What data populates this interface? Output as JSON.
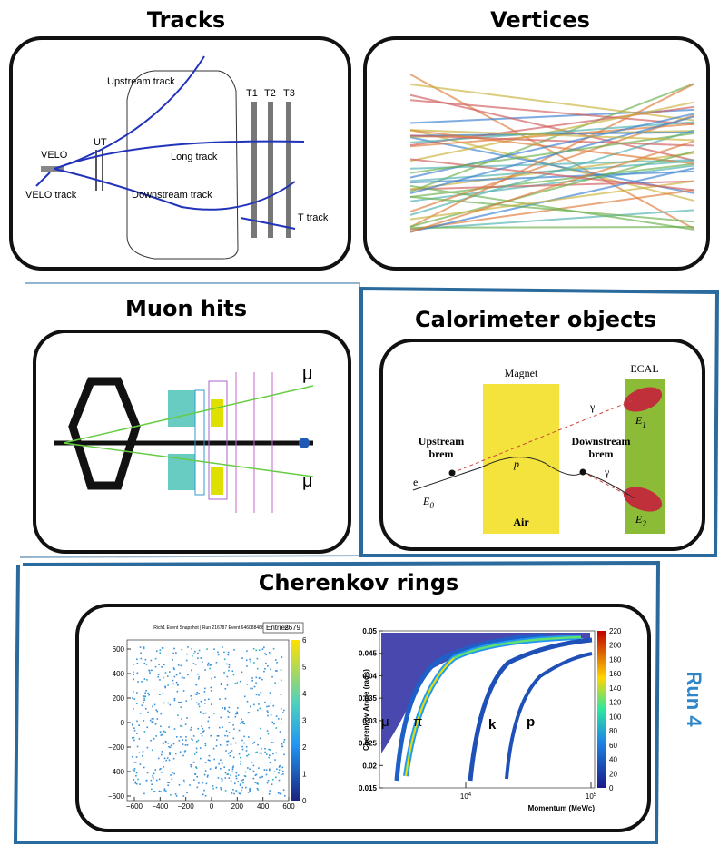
{
  "panels": {
    "tracks": {
      "title": "Tracks",
      "labels": {
        "upstream": "Upstream track",
        "t1": "T1",
        "t2": "T2",
        "t3": "T3",
        "ut": "UT",
        "velo": "VELO",
        "long": "Long track",
        "velo_track": "VELO track",
        "downstream": "Downstream track",
        "t_track": "T track"
      }
    },
    "vertices": {
      "title": "Vertices"
    },
    "muon": {
      "title": "Muon hits",
      "labels": [
        "μ",
        "μ"
      ]
    },
    "calorimeter": {
      "title": "Calorimeter objects",
      "labels": {
        "magnet": "Magnet",
        "ecal": "ECAL",
        "upstream_brem": [
          "Upstream",
          "brem"
        ],
        "downstream_brem": [
          "Downstream",
          "brem"
        ],
        "air": "Air",
        "e": "e",
        "p": "p",
        "gamma": [
          "γ",
          "γ"
        ],
        "e0": {
          "base": "E",
          "sub": "0"
        },
        "e1": {
          "base": "E",
          "sub": "1"
        },
        "e2": {
          "base": "E",
          "sub": "2"
        }
      }
    },
    "cherenkov": {
      "title": "Cherenkov rings",
      "left": {
        "title": "Rich1 Event Snapshot | Run 216787 Event 646088486",
        "entries_label": "Entries",
        "entries": "2679",
        "xticks": [
          "−600",
          "−400",
          "−200",
          "0",
          "200",
          "400",
          "600"
        ],
        "yticks": [
          "600",
          "400",
          "200",
          "0",
          "−200",
          "−400",
          "−600"
        ],
        "zticks": [
          "0",
          "1",
          "2",
          "3",
          "4",
          "5",
          "6"
        ]
      },
      "right": {
        "ylabel": "Cherenkov Angle (rads)",
        "xlabel": "Momentum (MeV/c)",
        "yticks": [
          "0.015",
          "0.02",
          "0.025",
          "0.03",
          "0.035",
          "0.04",
          "0.045",
          "0.05"
        ],
        "xticks": [
          {
            "base": "10",
            "exp": "4"
          },
          {
            "base": "10",
            "exp": "5"
          }
        ],
        "zticks": [
          "0",
          "20",
          "40",
          "60",
          "80",
          "100",
          "120",
          "140",
          "160",
          "180",
          "200",
          "220"
        ],
        "particles": [
          "μ",
          "π",
          "k",
          "p"
        ]
      }
    }
  },
  "run_label": "Run 4"
}
